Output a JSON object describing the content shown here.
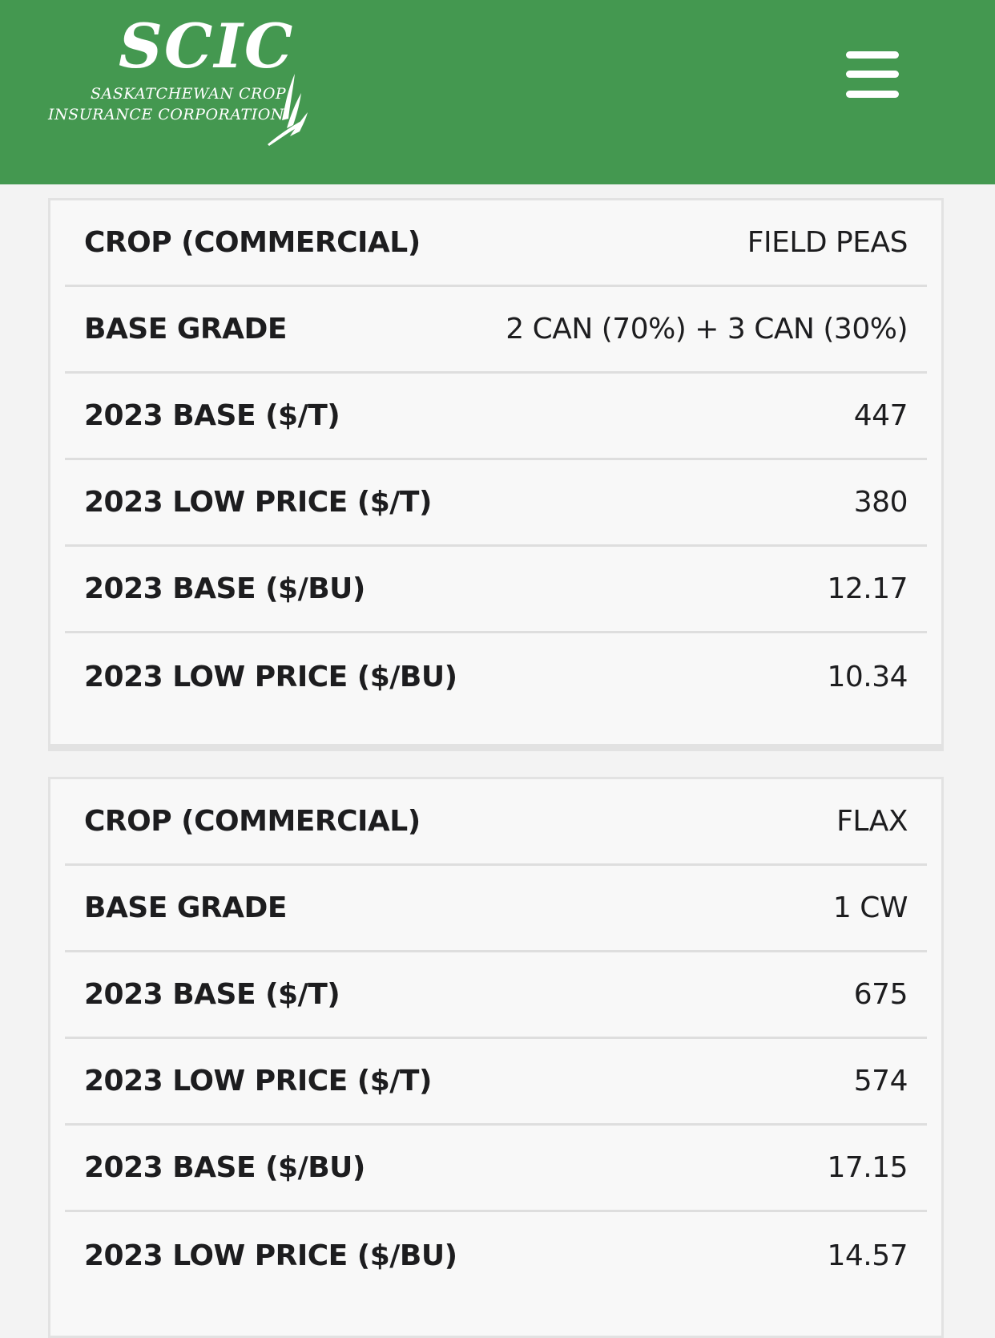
{
  "header": {
    "logo_mark": "SCIC",
    "logo_line1": "SASKATCHEWAN CROP",
    "logo_line2": "INSURANCE CORPORATION",
    "menu_icon": "hamburger-menu-icon",
    "background_color": "#449850"
  },
  "cards": [
    {
      "rows": [
        {
          "label": "CROP (COMMERCIAL)",
          "value": "FIELD PEAS"
        },
        {
          "label": "BASE GRADE",
          "value": "2 CAN (70%) + 3 CAN (30%)"
        },
        {
          "label": "2023 BASE ($/T)",
          "value": "447"
        },
        {
          "label": "2023 LOW PRICE ($/T)",
          "value": "380"
        },
        {
          "label": "2023 BASE ($/BU)",
          "value": "12.17"
        },
        {
          "label": "2023 LOW PRICE ($/BU)",
          "value": "10.34"
        }
      ]
    },
    {
      "rows": [
        {
          "label": "CROP (COMMERCIAL)",
          "value": "FLAX"
        },
        {
          "label": "BASE GRADE",
          "value": "1 CW"
        },
        {
          "label": "2023 BASE ($/T)",
          "value": "675"
        },
        {
          "label": "2023 LOW PRICE ($/T)",
          "value": "574"
        },
        {
          "label": "2023 BASE ($/BU)",
          "value": "17.15"
        },
        {
          "label": "2023 LOW PRICE ($/BU)",
          "value": "14.57"
        }
      ]
    }
  ]
}
